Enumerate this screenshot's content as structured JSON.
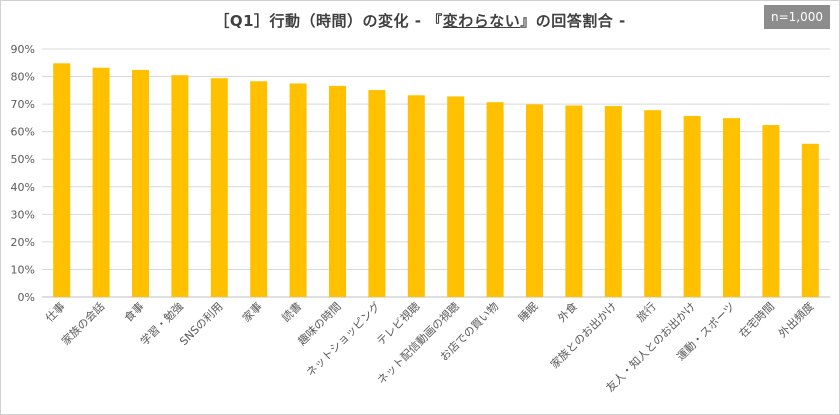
{
  "badge": "n=1,000",
  "title": {
    "prefix": "［Q1］行動（時間）の変化 - 『",
    "emph": "変わらない",
    "suffix": "』の回答割合 -"
  },
  "colors": {
    "bar": "#FFC000",
    "grid": "#d9d9d9",
    "axis": "#bfbfbf"
  },
  "chart_data": {
    "type": "bar",
    "title": "［Q1］行動（時間）の変化 - 『変わらない』の回答割合 -",
    "xlabel": "",
    "ylabel": "",
    "ylim": [
      0,
      90
    ],
    "yticks": [
      0,
      10,
      20,
      30,
      40,
      50,
      60,
      70,
      80,
      90
    ],
    "ytick_labels": [
      "0%",
      "10%",
      "20%",
      "30%",
      "40%",
      "50%",
      "60%",
      "70%",
      "80%",
      "90%"
    ],
    "grid": true,
    "legend": "none",
    "categories": [
      "仕事",
      "家族の会話",
      "食事",
      "学習・勉強",
      "SNSの利用",
      "家事",
      "読書",
      "趣味の時間",
      "ネットショッピング",
      "テレビ視聴",
      "ネット配信動画の視聴",
      "お店での買い物",
      "睡眠",
      "外食",
      "家族とのお出かけ",
      "旅行",
      "友人・知人とのお出かけ",
      "運動・スポーツ",
      "在宅時間",
      "外出頻度"
    ],
    "values": [
      84.8,
      83.2,
      82.4,
      80.5,
      79.4,
      78.3,
      77.5,
      76.6,
      75.1,
      73.2,
      72.8,
      70.7,
      69.9,
      69.5,
      69.3,
      67.8,
      65.7,
      64.9,
      62.4,
      55.6
    ]
  }
}
